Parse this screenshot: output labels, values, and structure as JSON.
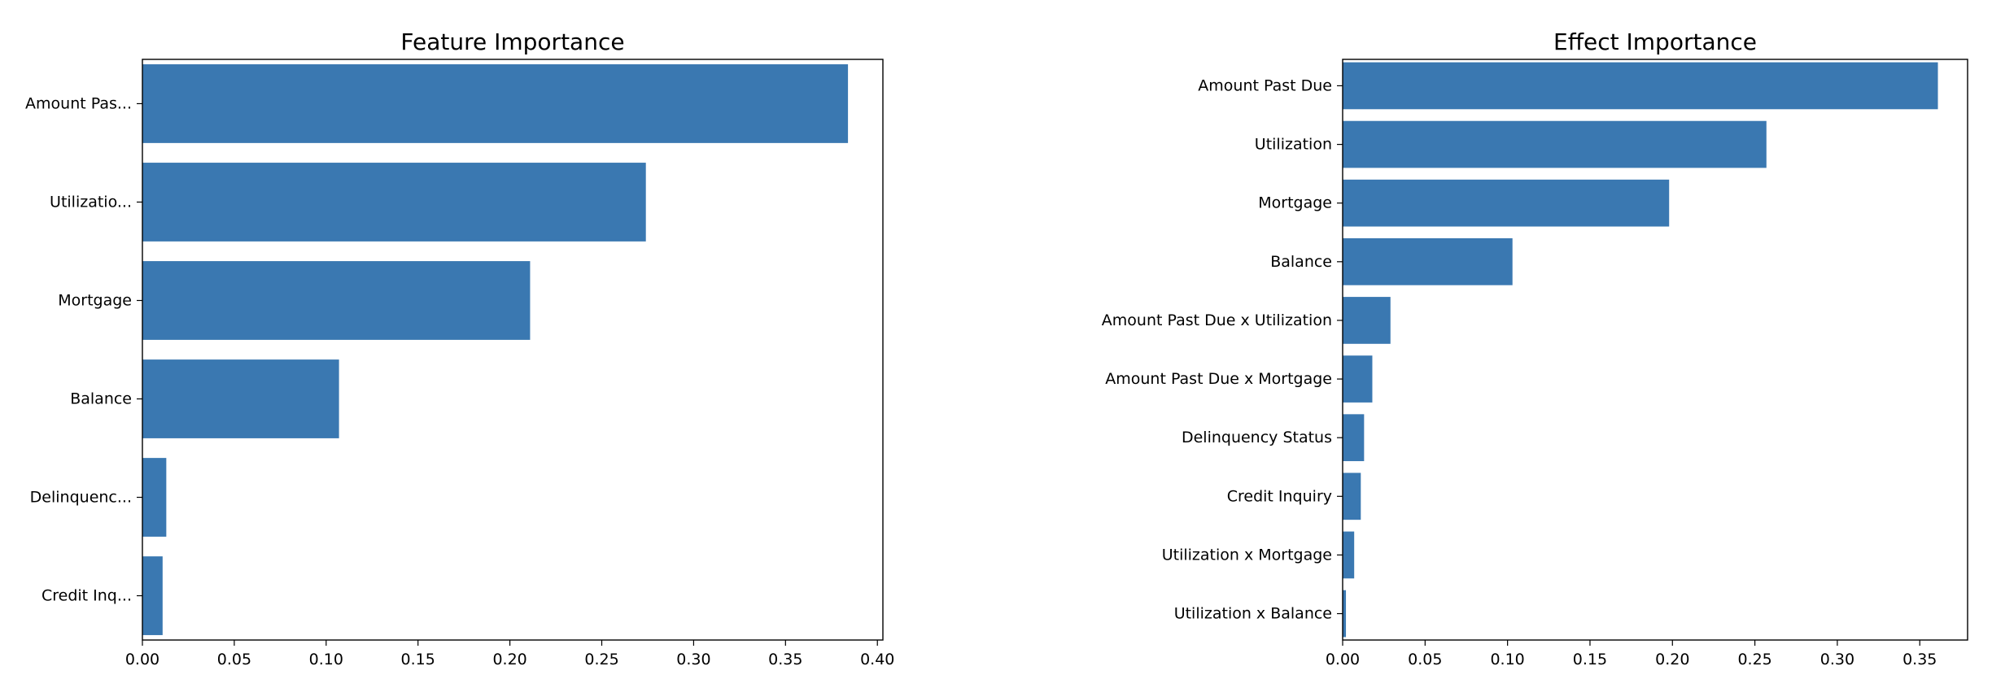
{
  "chart_data": [
    {
      "type": "bar",
      "orientation": "horizontal",
      "title": "Feature Importance",
      "xlabel": "",
      "ylabel": "",
      "categories": [
        "Amount Pas...",
        "Utilizatio...",
        "Mortgage",
        "Balance",
        "Delinquenc...",
        "Credit Inq..."
      ],
      "values": [
        0.384,
        0.274,
        0.211,
        0.107,
        0.013,
        0.011
      ],
      "xlim": [
        0,
        0.403
      ],
      "xticks": [
        0.0,
        0.05,
        0.1,
        0.15,
        0.2,
        0.25,
        0.3,
        0.35,
        0.4
      ],
      "xtick_labels": [
        "0.00",
        "0.05",
        "0.10",
        "0.15",
        "0.20",
        "0.25",
        "0.30",
        "0.35",
        "0.40"
      ],
      "bar_color": "#3a78b1",
      "grid": false
    },
    {
      "type": "bar",
      "orientation": "horizontal",
      "title": "Effect Importance",
      "xlabel": "",
      "ylabel": "",
      "categories": [
        "Amount Past Due",
        "Utilization",
        "Mortgage",
        "Balance",
        "Amount Past Due x Utilization",
        "Amount Past Due x Mortgage",
        "Delinquency Status",
        "Credit Inquiry",
        "Utilization x Mortgage",
        "Utilization x Balance"
      ],
      "values": [
        0.361,
        0.257,
        0.198,
        0.103,
        0.029,
        0.018,
        0.013,
        0.011,
        0.007,
        0.002
      ],
      "xlim": [
        0,
        0.379
      ],
      "xticks": [
        0.0,
        0.05,
        0.1,
        0.15,
        0.2,
        0.25,
        0.3,
        0.35
      ],
      "xtick_labels": [
        "0.00",
        "0.05",
        "0.10",
        "0.15",
        "0.20",
        "0.25",
        "0.30",
        "0.35"
      ],
      "bar_color": "#3a78b1",
      "grid": false
    }
  ]
}
